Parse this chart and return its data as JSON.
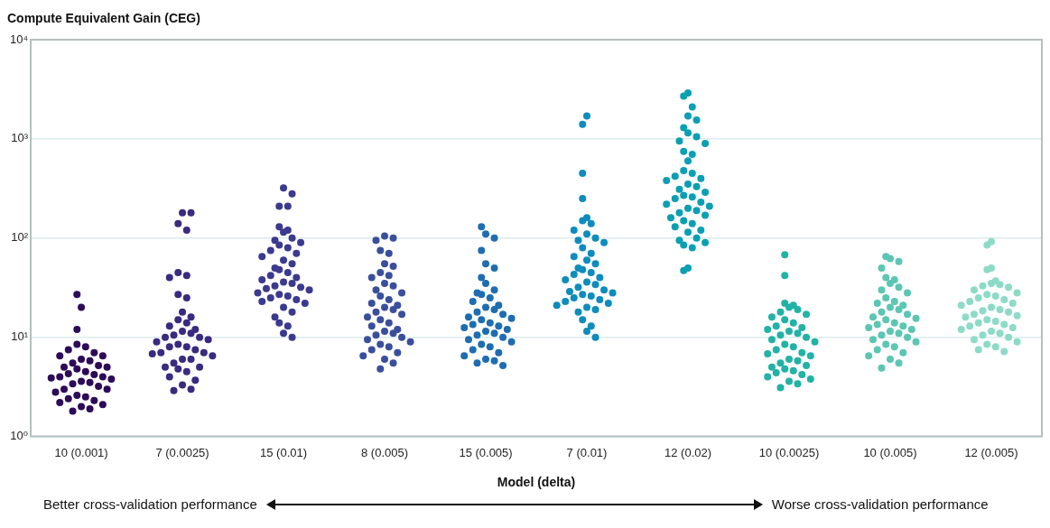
{
  "chart_data": {
    "type": "scatter",
    "ylabel": "Compute Equivalent Gain (CEG)",
    "xlabel": "Model (delta)",
    "categories": [
      "10 (0.001)",
      "7 (0.0025)",
      "15 (0.01)",
      "8 (0.005)",
      "15 (0.005)",
      "7 (0.01)",
      "12 (0.02)",
      "10 (0.0025)",
      "10 (0.005)",
      "12 (0.005)"
    ],
    "log": true,
    "ylim": [
      1,
      10000
    ],
    "yticks": [
      {
        "value": 1,
        "label": "10⁰"
      },
      {
        "value": 10,
        "label": "10¹"
      },
      {
        "value": 100,
        "label": "10²"
      },
      {
        "value": 1000,
        "label": "10³"
      },
      {
        "value": 10000,
        "label": "10⁴"
      }
    ],
    "grid": "y",
    "legend": false,
    "marker": "circle",
    "annotations": [
      "Better cross-validation performance",
      "Worse cross-validation performance"
    ],
    "series": [
      {
        "color": "#2d0b59",
        "x": [
          "10 (0.001)",
          "10 (0.001)",
          "10 (0.001)",
          "10 (0.001)",
          "10 (0.001)",
          "10 (0.001)",
          "10 (0.001)",
          "10 (0.001)",
          "10 (0.001)",
          "10 (0.001)",
          "10 (0.001)",
          "10 (0.001)",
          "10 (0.001)",
          "10 (0.001)",
          "10 (0.001)",
          "10 (0.001)",
          "10 (0.001)",
          "10 (0.001)",
          "10 (0.001)",
          "10 (0.001)",
          "10 (0.001)",
          "10 (0.001)",
          "10 (0.001)",
          "10 (0.001)",
          "10 (0.001)",
          "10 (0.001)",
          "10 (0.001)",
          "10 (0.001)",
          "10 (0.001)",
          "10 (0.001)",
          "10 (0.001)",
          "10 (0.001)",
          "10 (0.001)",
          "10 (0.001)",
          "10 (0.001)",
          "10 (0.001)",
          "10 (0.001)",
          "10 (0.001)",
          "10 (0.001)"
        ],
        "values": [
          27,
          20,
          12,
          8.5,
          8,
          7.5,
          7,
          6.5,
          6.5,
          6,
          5.8,
          5.5,
          5.2,
          5,
          5,
          4.8,
          4.5,
          4.3,
          4.2,
          4,
          4,
          3.9,
          3.8,
          3.6,
          3.5,
          3.4,
          3.2,
          3,
          3,
          2.8,
          2.6,
          2.5,
          2.4,
          2.3,
          2.2,
          2.1,
          2,
          1.9,
          1.8
        ]
      },
      {
        "color": "#3a2a80",
        "x": [
          "7 (0.0025)",
          "7 (0.0025)",
          "7 (0.0025)",
          "7 (0.0025)",
          "7 (0.0025)",
          "7 (0.0025)",
          "7 (0.0025)",
          "7 (0.0025)",
          "7 (0.0025)",
          "7 (0.0025)",
          "7 (0.0025)",
          "7 (0.0025)",
          "7 (0.0025)",
          "7 (0.0025)",
          "7 (0.0025)",
          "7 (0.0025)",
          "7 (0.0025)",
          "7 (0.0025)",
          "7 (0.0025)",
          "7 (0.0025)",
          "7 (0.0025)",
          "7 (0.0025)",
          "7 (0.0025)",
          "7 (0.0025)",
          "7 (0.0025)",
          "7 (0.0025)",
          "7 (0.0025)",
          "7 (0.0025)",
          "7 (0.0025)",
          "7 (0.0025)",
          "7 (0.0025)",
          "7 (0.0025)",
          "7 (0.0025)",
          "7 (0.0025)",
          "7 (0.0025)",
          "7 (0.0025)",
          "7 (0.0025)",
          "7 (0.0025)",
          "7 (0.0025)",
          "7 (0.0025)",
          "7 (0.0025)",
          "7 (0.0025)"
        ],
        "values": [
          180,
          180,
          140,
          120,
          45,
          42,
          40,
          27,
          25,
          18,
          16,
          15,
          14,
          13,
          12,
          11.5,
          11,
          10.5,
          10,
          10,
          9.5,
          9,
          8.5,
          8,
          8,
          7.5,
          7,
          7,
          6.8,
          6.5,
          6,
          6,
          5.5,
          5,
          5,
          4.8,
          4.5,
          4,
          3.7,
          3.3,
          3,
          2.9
        ]
      },
      {
        "color": "#3b3a8e",
        "x": [
          "15 (0.01)",
          "15 (0.01)",
          "15 (0.01)",
          "15 (0.01)",
          "15 (0.01)",
          "15 (0.01)",
          "15 (0.01)",
          "15 (0.01)",
          "15 (0.01)",
          "15 (0.01)",
          "15 (0.01)",
          "15 (0.01)",
          "15 (0.01)",
          "15 (0.01)",
          "15 (0.01)",
          "15 (0.01)",
          "15 (0.01)",
          "15 (0.01)",
          "15 (0.01)",
          "15 (0.01)",
          "15 (0.01)",
          "15 (0.01)",
          "15 (0.01)",
          "15 (0.01)",
          "15 (0.01)",
          "15 (0.01)",
          "15 (0.01)",
          "15 (0.01)",
          "15 (0.01)",
          "15 (0.01)",
          "15 (0.01)",
          "15 (0.01)",
          "15 (0.01)",
          "15 (0.01)",
          "15 (0.01)",
          "15 (0.01)",
          "15 (0.01)",
          "15 (0.01)",
          "15 (0.01)",
          "15 (0.01)",
          "15 (0.01)",
          "15 (0.01)",
          "15 (0.01)"
        ],
        "values": [
          320,
          280,
          210,
          210,
          130,
          120,
          115,
          100,
          95,
          90,
          85,
          80,
          75,
          70,
          65,
          60,
          55,
          50,
          48,
          45,
          42,
          40,
          38,
          36,
          35,
          33,
          32,
          31,
          30,
          28,
          27,
          26,
          25,
          24,
          23,
          22,
          20,
          18,
          16,
          14,
          13,
          11,
          10
        ]
      },
      {
        "color": "#3a4f9c",
        "x": [
          "8 (0.005)",
          "8 (0.005)",
          "8 (0.005)",
          "8 (0.005)",
          "8 (0.005)",
          "8 (0.005)",
          "8 (0.005)",
          "8 (0.005)",
          "8 (0.005)",
          "8 (0.005)",
          "8 (0.005)",
          "8 (0.005)",
          "8 (0.005)",
          "8 (0.005)",
          "8 (0.005)",
          "8 (0.005)",
          "8 (0.005)",
          "8 (0.005)",
          "8 (0.005)",
          "8 (0.005)",
          "8 (0.005)",
          "8 (0.005)",
          "8 (0.005)",
          "8 (0.005)",
          "8 (0.005)",
          "8 (0.005)",
          "8 (0.005)",
          "8 (0.005)",
          "8 (0.005)",
          "8 (0.005)",
          "8 (0.005)",
          "8 (0.005)",
          "8 (0.005)",
          "8 (0.005)",
          "8 (0.005)",
          "8 (0.005)",
          "8 (0.005)",
          "8 (0.005)",
          "8 (0.005)",
          "8 (0.005)",
          "8 (0.005)"
        ],
        "values": [
          105,
          100,
          95,
          75,
          70,
          55,
          52,
          45,
          42,
          40,
          35,
          33,
          30,
          28,
          26,
          24,
          22,
          21,
          20,
          19,
          18,
          17,
          16,
          15,
          14,
          13,
          12,
          11.5,
          11,
          10.5,
          10,
          9.5,
          9,
          8.5,
          8,
          7.5,
          7,
          6.5,
          6,
          5.5,
          4.8
        ]
      },
      {
        "color": "#1f6db0",
        "x": [
          "15 (0.005)",
          "15 (0.005)",
          "15 (0.005)",
          "15 (0.005)",
          "15 (0.005)",
          "15 (0.005)",
          "15 (0.005)",
          "15 (0.005)",
          "15 (0.005)",
          "15 (0.005)",
          "15 (0.005)",
          "15 (0.005)",
          "15 (0.005)",
          "15 (0.005)",
          "15 (0.005)",
          "15 (0.005)",
          "15 (0.005)",
          "15 (0.005)",
          "15 (0.005)",
          "15 (0.005)",
          "15 (0.005)",
          "15 (0.005)",
          "15 (0.005)",
          "15 (0.005)",
          "15 (0.005)",
          "15 (0.005)",
          "15 (0.005)",
          "15 (0.005)",
          "15 (0.005)",
          "15 (0.005)",
          "15 (0.005)",
          "15 (0.005)",
          "15 (0.005)",
          "15 (0.005)",
          "15 (0.005)",
          "15 (0.005)",
          "15 (0.005)",
          "15 (0.005)",
          "15 (0.005)",
          "15 (0.005)",
          "15 (0.005)"
        ],
        "values": [
          130,
          110,
          100,
          75,
          55,
          50,
          40,
          35,
          30,
          28,
          27,
          25,
          23,
          21,
          20,
          19,
          18,
          17,
          16,
          15.5,
          15,
          14,
          13.5,
          13,
          12.5,
          12,
          11.5,
          11,
          10.5,
          10,
          9.5,
          9,
          8.5,
          8,
          7.5,
          7,
          6.5,
          6,
          5.8,
          5.5,
          5.2
        ]
      },
      {
        "color": "#0e8cbd",
        "x": [
          "7 (0.01)",
          "7 (0.01)",
          "7 (0.01)",
          "7 (0.01)",
          "7 (0.01)",
          "7 (0.01)",
          "7 (0.01)",
          "7 (0.01)",
          "7 (0.01)",
          "7 (0.01)",
          "7 (0.01)",
          "7 (0.01)",
          "7 (0.01)",
          "7 (0.01)",
          "7 (0.01)",
          "7 (0.01)",
          "7 (0.01)",
          "7 (0.01)",
          "7 (0.01)",
          "7 (0.01)",
          "7 (0.01)",
          "7 (0.01)",
          "7 (0.01)",
          "7 (0.01)",
          "7 (0.01)",
          "7 (0.01)",
          "7 (0.01)",
          "7 (0.01)",
          "7 (0.01)",
          "7 (0.01)",
          "7 (0.01)",
          "7 (0.01)",
          "7 (0.01)",
          "7 (0.01)",
          "7 (0.01)",
          "7 (0.01)",
          "7 (0.01)",
          "7 (0.01)",
          "7 (0.01)",
          "7 (0.01)",
          "7 (0.01)",
          "7 (0.01)",
          "7 (0.01)"
        ],
        "values": [
          1700,
          1400,
          450,
          250,
          160,
          150,
          140,
          120,
          110,
          100,
          95,
          90,
          80,
          70,
          65,
          60,
          55,
          50,
          48,
          45,
          43,
          40,
          38,
          36,
          34,
          32,
          30,
          29,
          28,
          27,
          26,
          25,
          24,
          23,
          22,
          21,
          20,
          19,
          18,
          15,
          13,
          11.5,
          10
        ]
      },
      {
        "color": "#0b9fb3",
        "x": [
          "12 (0.02)",
          "12 (0.02)",
          "12 (0.02)",
          "12 (0.02)",
          "12 (0.02)",
          "12 (0.02)",
          "12 (0.02)",
          "12 (0.02)",
          "12 (0.02)",
          "12 (0.02)",
          "12 (0.02)",
          "12 (0.02)",
          "12 (0.02)",
          "12 (0.02)",
          "12 (0.02)",
          "12 (0.02)",
          "12 (0.02)",
          "12 (0.02)",
          "12 (0.02)",
          "12 (0.02)",
          "12 (0.02)",
          "12 (0.02)",
          "12 (0.02)",
          "12 (0.02)",
          "12 (0.02)",
          "12 (0.02)",
          "12 (0.02)",
          "12 (0.02)",
          "12 (0.02)",
          "12 (0.02)",
          "12 (0.02)",
          "12 (0.02)",
          "12 (0.02)",
          "12 (0.02)",
          "12 (0.02)",
          "12 (0.02)",
          "12 (0.02)",
          "12 (0.02)",
          "12 (0.02)",
          "12 (0.02)",
          "12 (0.02)",
          "12 (0.02)",
          "12 (0.02)",
          "12 (0.02)",
          "12 (0.02)"
        ],
        "values": [
          2900,
          2700,
          2100,
          1700,
          1550,
          1300,
          1150,
          1050,
          950,
          900,
          750,
          700,
          600,
          480,
          450,
          420,
          400,
          380,
          350,
          330,
          310,
          290,
          270,
          260,
          250,
          230,
          220,
          210,
          200,
          190,
          180,
          170,
          160,
          150,
          140,
          130,
          120,
          115,
          100,
          95,
          90,
          85,
          80,
          50,
          47
        ]
      },
      {
        "color": "#22b2a6",
        "x": [
          "10 (0.0025)",
          "10 (0.0025)",
          "10 (0.0025)",
          "10 (0.0025)",
          "10 (0.0025)",
          "10 (0.0025)",
          "10 (0.0025)",
          "10 (0.0025)",
          "10 (0.0025)",
          "10 (0.0025)",
          "10 (0.0025)",
          "10 (0.0025)",
          "10 (0.0025)",
          "10 (0.0025)",
          "10 (0.0025)",
          "10 (0.0025)",
          "10 (0.0025)",
          "10 (0.0025)",
          "10 (0.0025)",
          "10 (0.0025)",
          "10 (0.0025)",
          "10 (0.0025)",
          "10 (0.0025)",
          "10 (0.0025)",
          "10 (0.0025)",
          "10 (0.0025)",
          "10 (0.0025)",
          "10 (0.0025)",
          "10 (0.0025)",
          "10 (0.0025)",
          "10 (0.0025)",
          "10 (0.0025)",
          "10 (0.0025)",
          "10 (0.0025)",
          "10 (0.0025)",
          "10 (0.0025)",
          "10 (0.0025)",
          "10 (0.0025)",
          "10 (0.0025)",
          "10 (0.0025)"
        ],
        "values": [
          68,
          42,
          22,
          21,
          20,
          19,
          18,
          17,
          16,
          15,
          14,
          13,
          12.5,
          12,
          11.5,
          11,
          10.5,
          10,
          9.5,
          9,
          8.5,
          8,
          7.5,
          7,
          6.8,
          6.5,
          6,
          5.8,
          5.5,
          5.2,
          5,
          4.8,
          4.6,
          4.4,
          4.2,
          4,
          3.8,
          3.6,
          3.4,
          3.1
        ]
      },
      {
        "color": "#5bc6b3",
        "x": [
          "10 (0.005)",
          "10 (0.005)",
          "10 (0.005)",
          "10 (0.005)",
          "10 (0.005)",
          "10 (0.005)",
          "10 (0.005)",
          "10 (0.005)",
          "10 (0.005)",
          "10 (0.005)",
          "10 (0.005)",
          "10 (0.005)",
          "10 (0.005)",
          "10 (0.005)",
          "10 (0.005)",
          "10 (0.005)",
          "10 (0.005)",
          "10 (0.005)",
          "10 (0.005)",
          "10 (0.005)",
          "10 (0.005)",
          "10 (0.005)",
          "10 (0.005)",
          "10 (0.005)",
          "10 (0.005)",
          "10 (0.005)",
          "10 (0.005)",
          "10 (0.005)",
          "10 (0.005)",
          "10 (0.005)",
          "10 (0.005)",
          "10 (0.005)",
          "10 (0.005)",
          "10 (0.005)",
          "10 (0.005)",
          "10 (0.005)",
          "10 (0.005)",
          "10 (0.005)",
          "10 (0.005)",
          "10 (0.005)"
        ],
        "values": [
          65,
          62,
          58,
          50,
          40,
          38,
          35,
          32,
          30,
          28,
          25,
          23,
          22,
          21,
          20,
          19,
          18,
          17,
          16,
          15.5,
          15,
          14,
          13.5,
          13,
          12.5,
          12,
          11.5,
          11,
          10.5,
          10,
          9.5,
          9,
          8.5,
          8,
          7.5,
          7,
          6.5,
          6,
          5.5,
          4.9
        ]
      },
      {
        "color": "#8ddbc7",
        "x": [
          "12 (0.005)",
          "12 (0.005)",
          "12 (0.005)",
          "12 (0.005)",
          "12 (0.005)",
          "12 (0.005)",
          "12 (0.005)",
          "12 (0.005)",
          "12 (0.005)",
          "12 (0.005)",
          "12 (0.005)",
          "12 (0.005)",
          "12 (0.005)",
          "12 (0.005)",
          "12 (0.005)",
          "12 (0.005)",
          "12 (0.005)",
          "12 (0.005)",
          "12 (0.005)",
          "12 (0.005)",
          "12 (0.005)",
          "12 (0.005)",
          "12 (0.005)",
          "12 (0.005)",
          "12 (0.005)",
          "12 (0.005)",
          "12 (0.005)",
          "12 (0.005)",
          "12 (0.005)",
          "12 (0.005)",
          "12 (0.005)",
          "12 (0.005)",
          "12 (0.005)",
          "12 (0.005)",
          "12 (0.005)",
          "12 (0.005)",
          "12 (0.005)",
          "12 (0.005)",
          "12 (0.005)",
          "12 (0.005)",
          "12 (0.005)",
          "12 (0.005)"
        ],
        "values": [
          92,
          85,
          50,
          48,
          37,
          35,
          34,
          33,
          32,
          30,
          28,
          27,
          26,
          25,
          24,
          23,
          22,
          21,
          20,
          19,
          18.5,
          18,
          17,
          16.5,
          16,
          15,
          14.5,
          14,
          13.5,
          13,
          12.5,
          12,
          11.5,
          11,
          10.5,
          10,
          9.5,
          9,
          8.5,
          8,
          7.5,
          7.2
        ]
      }
    ]
  }
}
